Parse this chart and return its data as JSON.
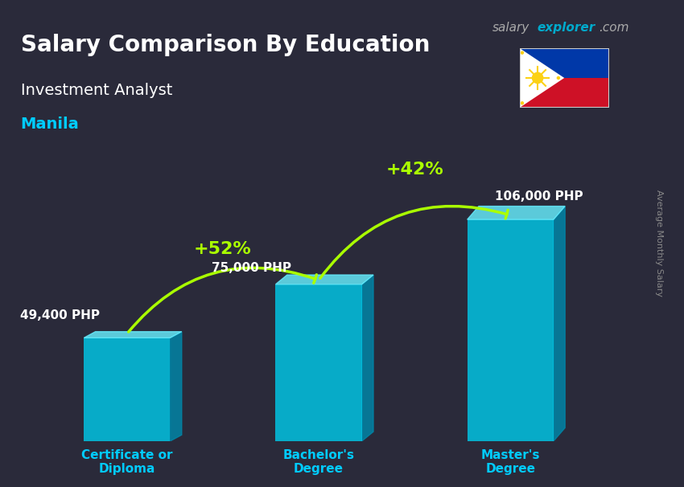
{
  "title_line1": "Salary Comparison By Education",
  "subtitle": "Investment Analyst",
  "location": "Manila",
  "watermark": "salaryexplorer.com",
  "ylabel": "Average Monthly Salary",
  "categories": [
    "Certificate or\nDiploma",
    "Bachelor's\nDegree",
    "Master's\nDegree"
  ],
  "values": [
    49400,
    75000,
    106000
  ],
  "value_labels": [
    "49,400 PHP",
    "75,000 PHP",
    "106,000 PHP"
  ],
  "pct_labels": [
    "+52%",
    "+42%"
  ],
  "bar_color_top": "#00d4ff",
  "bar_color_bottom": "#0099cc",
  "bar_color_side": "#007aaa",
  "background_color": "#1a1a2e",
  "title_color": "#ffffff",
  "subtitle_color": "#ffffff",
  "location_color": "#00ccff",
  "category_color": "#00ccff",
  "value_label_color": "#ffffff",
  "pct_color": "#aaff00",
  "bar_width": 0.45,
  "bar_positions": [
    1,
    2,
    3
  ],
  "ylim": [
    0,
    140000
  ],
  "arrow_color": "#aaff00",
  "salary_color": "#ffffff",
  "watermark_salary_color": "#555555",
  "watermark_explorer_color": "#00aacc"
}
